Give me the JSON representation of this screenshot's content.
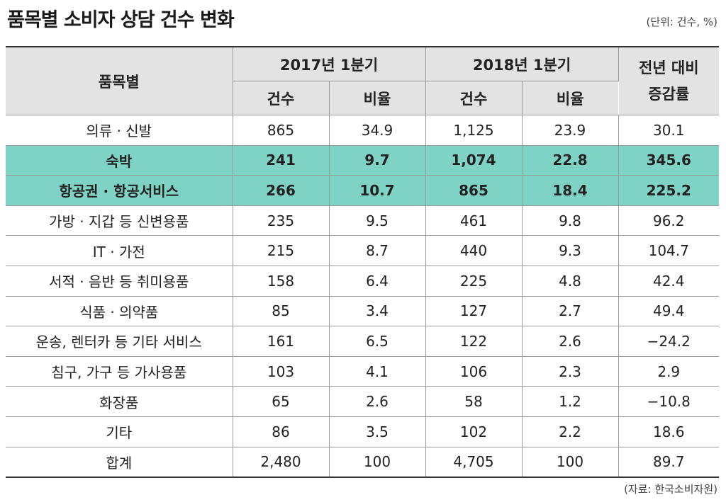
{
  "title": "품목별 소비자 상담 건수 변화",
  "unit_note": "(단위: 건수, %)",
  "source": "(자료: 한국소비자원)",
  "highlight_color": "#7ed3c5",
  "header": {
    "item": "품목별",
    "period1": "2017년 1분기",
    "period2": "2018년 1분기",
    "change": "전년 대비\n증감률",
    "count": "건수",
    "ratio": "비율"
  },
  "chart_data": {
    "type": "table",
    "title": "품목별 소비자 상담 건수 변화",
    "columns": [
      "품목별",
      "2017년 1분기 건수",
      "2017년 1분기 비율",
      "2018년 1분기 건수",
      "2018년 1분기 비율",
      "전년 대비 증감률"
    ],
    "rows": [
      {
        "item": "의류 · 신발",
        "c2017": "865",
        "r2017": "34.9",
        "c2018": "1,125",
        "r2018": "23.9",
        "change": "30.1",
        "highlight": false
      },
      {
        "item": "숙박",
        "c2017": "241",
        "r2017": "9.7",
        "c2018": "1,074",
        "r2018": "22.8",
        "change": "345.6",
        "highlight": true
      },
      {
        "item": "항공권 · 항공서비스",
        "c2017": "266",
        "r2017": "10.7",
        "c2018": "865",
        "r2018": "18.4",
        "change": "225.2",
        "highlight": true
      },
      {
        "item": "가방 · 지갑 등 신변용품",
        "c2017": "235",
        "r2017": "9.5",
        "c2018": "461",
        "r2018": "9.8",
        "change": "96.2",
        "highlight": false
      },
      {
        "item": "IT · 가전",
        "c2017": "215",
        "r2017": "8.7",
        "c2018": "440",
        "r2018": "9.3",
        "change": "104.7",
        "highlight": false
      },
      {
        "item": "서적 · 음반 등 취미용품",
        "c2017": "158",
        "r2017": "6.4",
        "c2018": "225",
        "r2018": "4.8",
        "change": "42.4",
        "highlight": false
      },
      {
        "item": "식품 · 의약품",
        "c2017": "85",
        "r2017": "3.4",
        "c2018": "127",
        "r2018": "2.7",
        "change": "49.4",
        "highlight": false
      },
      {
        "item": "운송, 렌터카 등 기타 서비스",
        "c2017": "161",
        "r2017": "6.5",
        "c2018": "122",
        "r2018": "2.6",
        "change": "−24.2",
        "highlight": false
      },
      {
        "item": "침구, 가구 등 가사용품",
        "c2017": "103",
        "r2017": "4.1",
        "c2018": "106",
        "r2018": "2.3",
        "change": "2.9",
        "highlight": false
      },
      {
        "item": "화장품",
        "c2017": "65",
        "r2017": "2.6",
        "c2018": "58",
        "r2018": "1.2",
        "change": "−10.8",
        "highlight": false
      },
      {
        "item": "기타",
        "c2017": "86",
        "r2017": "3.5",
        "c2018": "102",
        "r2018": "2.2",
        "change": "18.6",
        "highlight": false
      },
      {
        "item": "합계",
        "c2017": "2,480",
        "r2017": "100",
        "c2018": "4,705",
        "r2018": "100",
        "change": "89.7",
        "highlight": false
      }
    ]
  }
}
